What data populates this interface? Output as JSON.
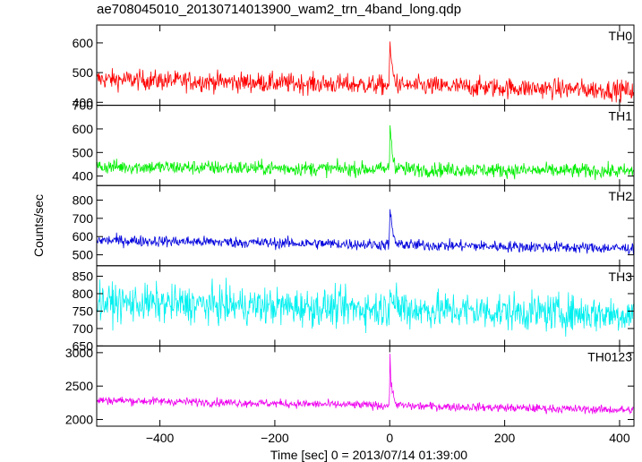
{
  "title": "ae708045010_20130714013900_wam2_trn_4band_long.qdp",
  "chart_data": {
    "type": "line",
    "xlabel": "Time [sec] 0 = 2013/07/14 01:39:00",
    "ylabel": "Counts/sec",
    "xlim": [
      -510,
      425
    ],
    "xticks": [
      -400,
      -200,
      0,
      200,
      400
    ],
    "xtick_labels": [
      "−400",
      "−200",
      "0",
      "200",
      "400"
    ],
    "panels": [
      {
        "name": "TH0",
        "color": "#ff0000",
        "ylim": [
          390,
          660
        ],
        "yticks": [
          400,
          500,
          600
        ],
        "ytick_labels": [
          "400",
          "500",
          "600"
        ],
        "baseline_start": 478,
        "baseline_end": 440,
        "noise": 24,
        "peak": 660,
        "peak_x": 0
      },
      {
        "name": "TH1",
        "color": "#00ee00",
        "ylim": [
          360,
          700
        ],
        "yticks": [
          400,
          500,
          600,
          700
        ],
        "ytick_labels": [
          "400",
          "500",
          "600",
          "700"
        ],
        "baseline_start": 440,
        "baseline_end": 420,
        "noise": 22,
        "peak": 700,
        "peak_x": 0
      },
      {
        "name": "TH2",
        "color": "#0000dd",
        "ylim": [
          440,
          880
        ],
        "yticks": [
          500,
          600,
          700,
          800
        ],
        "ytick_labels": [
          "500",
          "600",
          "700",
          "800"
        ],
        "baseline_start": 580,
        "baseline_end": 535,
        "noise": 22,
        "peak": 870,
        "peak_x": 0
      },
      {
        "name": "TH3",
        "color": "#00f0f0",
        "ylim": [
          650,
          880
        ],
        "yticks": [
          650,
          700,
          750,
          800,
          850
        ],
        "ytick_labels": [
          "650",
          "700",
          "750",
          "800",
          "850"
        ],
        "baseline_start": 775,
        "baseline_end": 740,
        "noise": 38,
        "peak": 880,
        "peak_x": 0
      },
      {
        "name": "TH0123",
        "color": "#ee00ee",
        "ylim": [
          1900,
          3100
        ],
        "yticks": [
          2000,
          2500,
          3000
        ],
        "ytick_labels": [
          "2000",
          "2500",
          "3000"
        ],
        "baseline_start": 2290,
        "baseline_end": 2140,
        "noise": 45,
        "peak": 3050,
        "peak_x": 0
      }
    ]
  }
}
